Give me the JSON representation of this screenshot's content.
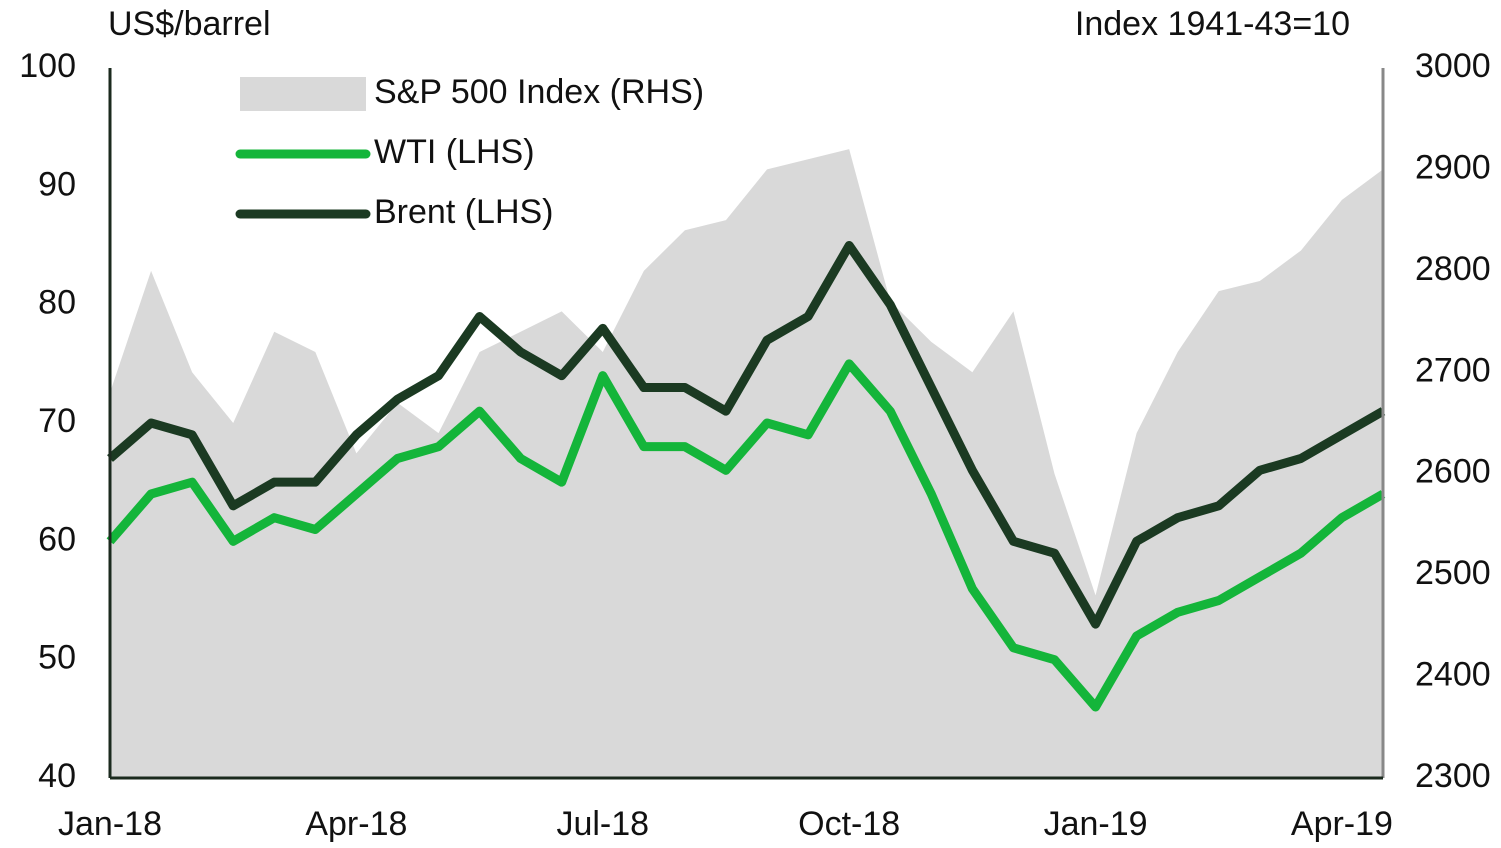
{
  "chart_data": {
    "type": "line",
    "ylabel": "US$/barrel",
    "y2label": "Index 1941-43=10",
    "categories": [
      "Jan-18",
      null,
      null,
      null,
      null,
      null,
      "Apr-18",
      null,
      null,
      null,
      null,
      null,
      "Jul-18",
      null,
      null,
      null,
      null,
      null,
      "Oct-18",
      null,
      null,
      null,
      null,
      null,
      "Jan-19",
      null,
      null,
      null,
      null,
      null,
      "Apr-19",
      null
    ],
    "series": [
      {
        "name": "S&P 500 Index (RHS)",
        "color": "#d9d9d9",
        "axis": "y2",
        "area": true,
        "values": [
          2680,
          2800,
          2700,
          2650,
          2740,
          2720,
          2620,
          2670,
          2640,
          2720,
          2740,
          2760,
          2720,
          2800,
          2840,
          2850,
          2900,
          2910,
          2920,
          2770,
          2730,
          2700,
          2760,
          2600,
          2480,
          2640,
          2720,
          2780,
          2790,
          2820,
          2870,
          2900
        ]
      },
      {
        "name": "WTI (LHS)",
        "color": "#14b53a",
        "values": [
          60,
          64,
          65,
          60,
          62,
          61,
          64,
          67,
          68,
          71,
          67,
          65,
          74,
          68,
          68,
          66,
          70,
          69,
          75,
          71,
          64,
          56,
          51,
          50,
          46,
          52,
          54,
          55,
          57,
          59,
          62,
          64
        ]
      },
      {
        "name": "Brent (LHS)",
        "color": "#1b3a22",
        "values": [
          67,
          70,
          69,
          63,
          65,
          65,
          69,
          72,
          74,
          79,
          76,
          74,
          78,
          73,
          73,
          71,
          77,
          79,
          85,
          80,
          73,
          66,
          60,
          59,
          53,
          60,
          62,
          63,
          66,
          67,
          69,
          71
        ]
      }
    ],
    "ylim": [
      40,
      100
    ],
    "yticks": [
      40,
      50,
      60,
      70,
      80,
      90,
      100
    ],
    "y2lim": [
      2300,
      3000
    ],
    "y2ticks": [
      2300,
      2400,
      2500,
      2600,
      2700,
      2800,
      2900,
      3000
    ],
    "legend": "top-left"
  }
}
